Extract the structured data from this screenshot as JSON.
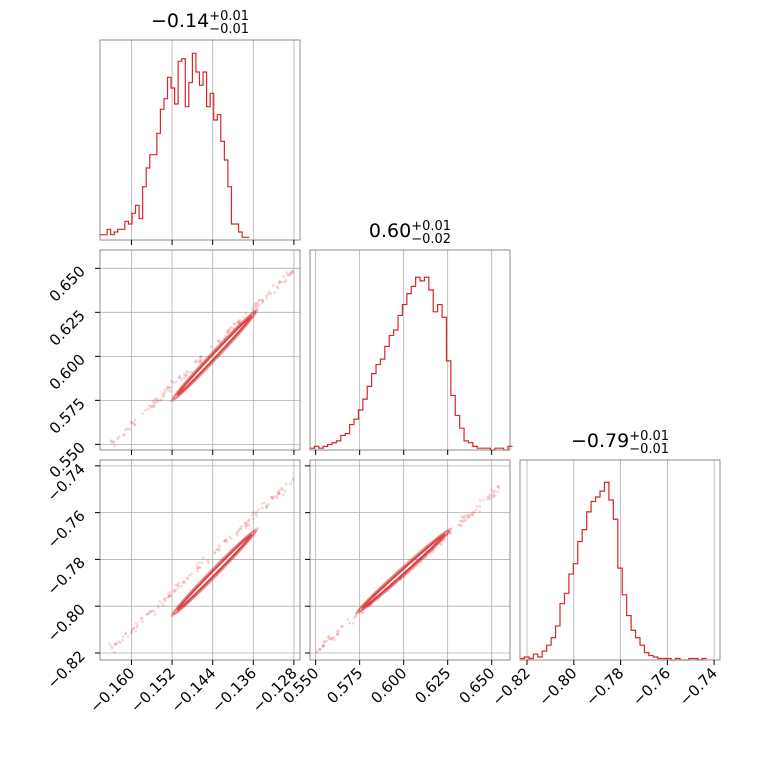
{
  "figure": {
    "type": "corner-plot"
  },
  "chart_data": [
    {
      "type": "histogram",
      "panel": "p00",
      "title_value": "−0.14",
      "title_plus": "+0.01",
      "title_minus": "−0.01",
      "x_range": [
        -0.1662,
        -0.1268
      ],
      "x_ticks": [
        -0.16,
        -0.152,
        -0.144,
        -0.136,
        -0.128
      ],
      "x_tick_labels": [
        "−0.160",
        "−0.152",
        "−0.144",
        "−0.136",
        "−0.128"
      ],
      "bin_start": -0.1662,
      "bin_width": 0.0007,
      "counts": [
        2,
        2,
        4,
        2,
        3,
        4,
        4,
        7,
        6,
        10,
        13,
        8,
        20,
        27,
        32,
        32,
        40,
        49,
        53,
        61,
        57,
        51,
        67,
        68,
        50,
        59,
        70,
        63,
        58,
        63,
        50,
        55,
        45,
        47,
        37,
        30,
        20,
        6,
        6,
        3,
        1,
        1
      ],
      "ylim": [
        0,
        75
      ]
    },
    {
      "type": "histogram",
      "panel": "p11",
      "title_value": "0.60",
      "title_plus": "+0.01",
      "title_minus": "−0.02",
      "x_range": [
        0.5468,
        0.6604
      ],
      "x_ticks": [
        0.55,
        0.575,
        0.6,
        0.625,
        0.65
      ],
      "x_tick_labels": [
        "0.550",
        "0.575",
        "0.600",
        "0.625",
        "0.650"
      ],
      "bin_start": 0.5468,
      "bin_width": 0.0025,
      "counts": [
        1,
        2,
        1,
        2,
        3,
        4,
        5,
        8,
        9,
        14,
        17,
        22,
        28,
        35,
        42,
        47,
        50,
        57,
        63,
        66,
        74,
        80,
        86,
        90,
        95,
        93,
        95,
        88,
        76,
        80,
        73,
        49,
        30,
        19,
        12,
        5,
        4,
        2,
        1,
        1,
        1,
        0,
        1,
        1,
        0,
        2
      ],
      "ylim": [
        0,
        110
      ]
    },
    {
      "type": "histogram",
      "panel": "p22",
      "title_value": "−0.79",
      "title_plus": "+0.01",
      "title_minus": "−0.01",
      "x_range": [
        -0.823,
        -0.7375
      ],
      "x_ticks": [
        -0.82,
        -0.8,
        -0.78,
        -0.76,
        -0.74
      ],
      "x_tick_labels": [
        "−0.82",
        "−0.80",
        "−0.78",
        "−0.76",
        "−0.74"
      ],
      "bin_start": -0.823,
      "bin_width": 0.0019,
      "counts": [
        1,
        2,
        1,
        4,
        2,
        6,
        10,
        15,
        23,
        38,
        45,
        58,
        65,
        80,
        88,
        100,
        107,
        110,
        114,
        120,
        108,
        95,
        62,
        44,
        30,
        20,
        15,
        10,
        5,
        3,
        2,
        1,
        1,
        1,
        0,
        1,
        0,
        0,
        1,
        1,
        0,
        1
      ],
      "ylim": [
        0,
        135
      ]
    },
    {
      "type": "scatter",
      "panel": "p10",
      "x_var": 0,
      "y_var": 1,
      "xlim": [
        -0.1662,
        -0.1268
      ],
      "ylim": [
        0.5468,
        0.6604
      ],
      "y_ticks": [
        0.55,
        0.575,
        0.6,
        0.625,
        0.65
      ],
      "y_tick_labels": [
        "0.550",
        "0.575",
        "0.600",
        "0.625",
        "0.650"
      ],
      "trend": {
        "x": [
          -0.164,
          -0.128
        ],
        "y": [
          0.5505,
          0.6485
        ]
      },
      "core": {
        "x": [
          -0.1518,
          -0.1355
        ],
        "y": [
          0.5755,
          0.6255
        ]
      }
    },
    {
      "type": "scatter",
      "panel": "p20",
      "x_var": 0,
      "y_var": 2,
      "xlim": [
        -0.1662,
        -0.1268
      ],
      "ylim": [
        -0.823,
        -0.7375
      ],
      "y_ticks": [
        -0.82,
        -0.8,
        -0.78,
        -0.76,
        -0.74
      ],
      "y_tick_labels": [
        "−0.82",
        "−0.80",
        "−0.78",
        "−0.76",
        "−0.74"
      ],
      "trend": {
        "x": [
          -0.164,
          -0.128
        ],
        "y": [
          -0.8185,
          -0.7455
        ]
      },
      "core": {
        "x": [
          -0.1518,
          -0.1355
        ],
        "y": [
          -0.8035,
          -0.7675
        ]
      }
    },
    {
      "type": "scatter",
      "panel": "p21",
      "x_var": 1,
      "y_var": 2,
      "xlim": [
        0.5468,
        0.6604
      ],
      "ylim": [
        -0.823,
        -0.7375
      ],
      "trend": {
        "x": [
          0.55,
          0.6575
        ],
        "y": [
          -0.8195,
          -0.7475
        ]
      },
      "core": {
        "x": [
          0.574,
          0.626
        ],
        "y": [
          -0.8025,
          -0.7675
        ]
      }
    }
  ]
}
